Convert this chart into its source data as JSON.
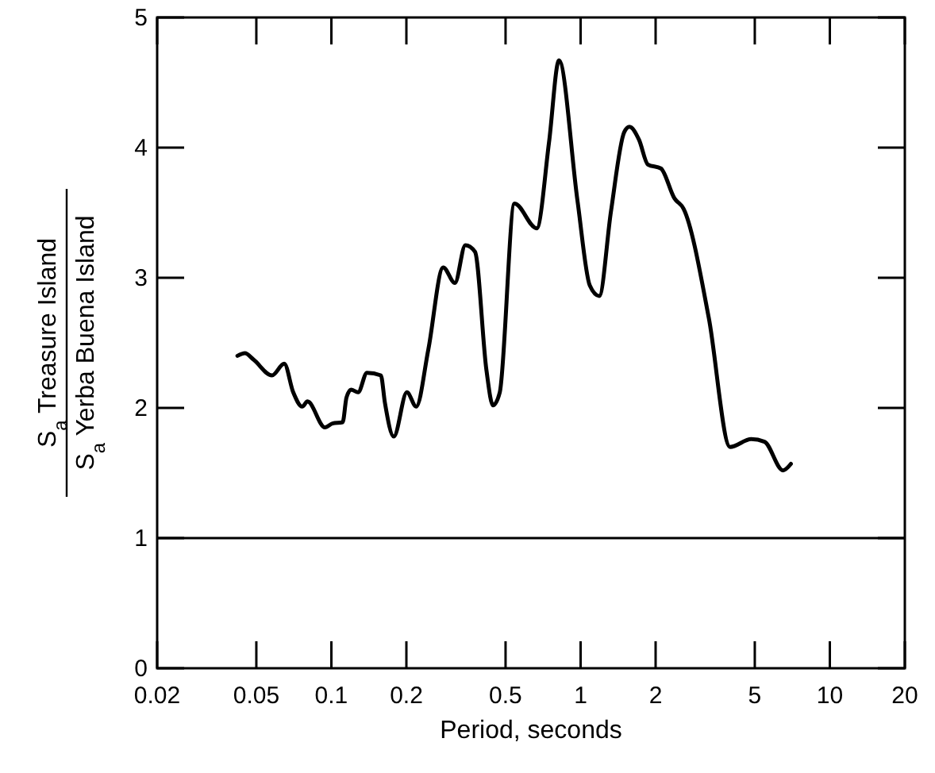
{
  "chart_data": {
    "type": "line",
    "xlabel": "Period, seconds",
    "ylabel": "S$_{a}$ Treasure Island\nS$_{a}$ Yerba Buena Island",
    "log": "x",
    "xlim": [
      0.02,
      20
    ],
    "xticks": [
      0.02,
      0.05,
      0.1,
      0.2,
      0.5,
      1,
      2,
      5,
      10,
      20
    ],
    "ylim": [
      0,
      5
    ],
    "yticks": [
      0,
      1,
      2,
      3,
      4,
      5
    ],
    "grid": false,
    "line_style": "solid",
    "ref_lines": [
      {
        "axis": "y",
        "value": 1,
        "color": "#000000",
        "line_style": "solid"
      }
    ],
    "series": [
      {
        "color": "#000000",
        "x": [
          0.042,
          0.045,
          0.0488,
          0.0578,
          0.0647,
          0.0703,
          0.0764,
          0.0802,
          0.0943,
          0.101,
          0.111,
          0.115,
          0.12,
          0.128,
          0.139,
          0.158,
          0.164,
          0.178,
          0.201,
          0.219,
          0.245,
          0.281,
          0.313,
          0.345,
          0.377,
          0.419,
          0.445,
          0.474,
          0.543,
          0.667,
          0.747,
          0.819,
          0.972,
          1.089,
          1.188,
          1.324,
          1.497,
          1.571,
          1.716,
          1.862,
          2.1,
          2.38,
          2.59,
          3.27,
          3.98,
          4.84,
          5.47,
          6.49,
          6.98
        ],
        "values": [
          2.4,
          2.42,
          2.37,
          2.25,
          2.34,
          2.12,
          2.01,
          2.05,
          1.85,
          1.88,
          1.89,
          2.08,
          2.14,
          2.12,
          2.27,
          2.25,
          2.04,
          1.78,
          2.12,
          2.01,
          2.45,
          3.08,
          2.96,
          3.25,
          3.2,
          2.29,
          2.02,
          2.12,
          3.57,
          3.38,
          4.04,
          4.67,
          3.59,
          2.94,
          2.86,
          3.51,
          4.12,
          4.16,
          4.06,
          3.87,
          3.84,
          3.61,
          3.53,
          2.69,
          1.7,
          1.76,
          1.74,
          1.52,
          1.57
        ]
      }
    ]
  }
}
